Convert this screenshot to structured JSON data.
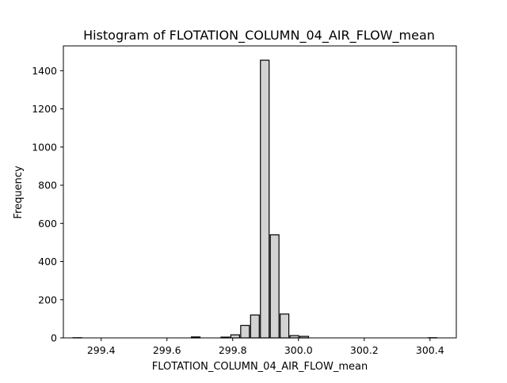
{
  "chart_data": {
    "type": "bar",
    "title": "Histogram of FLOTATION_COLUMN_04_AIR_FLOW_mean",
    "xlabel": "FLOTATION_COLUMN_04_AIR_FLOW_mean",
    "ylabel": "Frequency",
    "xlim": [
      299.285,
      300.48
    ],
    "ylim": [
      0,
      1530
    ],
    "xticks": [
      299.4,
      299.6,
      299.8,
      300.0,
      300.2,
      300.4
    ],
    "xtick_labels": [
      "299.4",
      "299.6",
      "299.8",
      "300.0",
      "300.2",
      "300.4"
    ],
    "yticks": [
      0,
      200,
      400,
      600,
      800,
      1000,
      1200,
      1400
    ],
    "ytick_labels": [
      "0",
      "200",
      "400",
      "600",
      "800",
      "1000",
      "1200",
      "1400"
    ],
    "bin_edges": [
      299.3125,
      299.3425,
      299.3725,
      299.4025,
      299.4325,
      299.4625,
      299.4925,
      299.5225,
      299.5525,
      299.5825,
      299.6125,
      299.6425,
      299.6725,
      299.7025,
      299.7325,
      299.7625,
      299.7925,
      299.8225,
      299.8525,
      299.8825,
      299.9125,
      299.9425,
      299.9725,
      300.0025,
      300.0325,
      300.0625,
      300.0925,
      300.1225,
      300.1525,
      300.1825,
      300.2125,
      300.2425,
      300.2725,
      300.3025,
      300.3325,
      300.3625,
      300.3925,
      300.4225
    ],
    "values": [
      1,
      0,
      0,
      0,
      0,
      0,
      0,
      0,
      0,
      0,
      0,
      0,
      5,
      0,
      0,
      4,
      16,
      65,
      120,
      1455,
      540,
      125,
      12,
      8,
      0,
      0,
      0,
      0,
      0,
      0,
      0,
      0,
      0,
      0,
      0,
      0,
      1
    ],
    "grid": false
  }
}
